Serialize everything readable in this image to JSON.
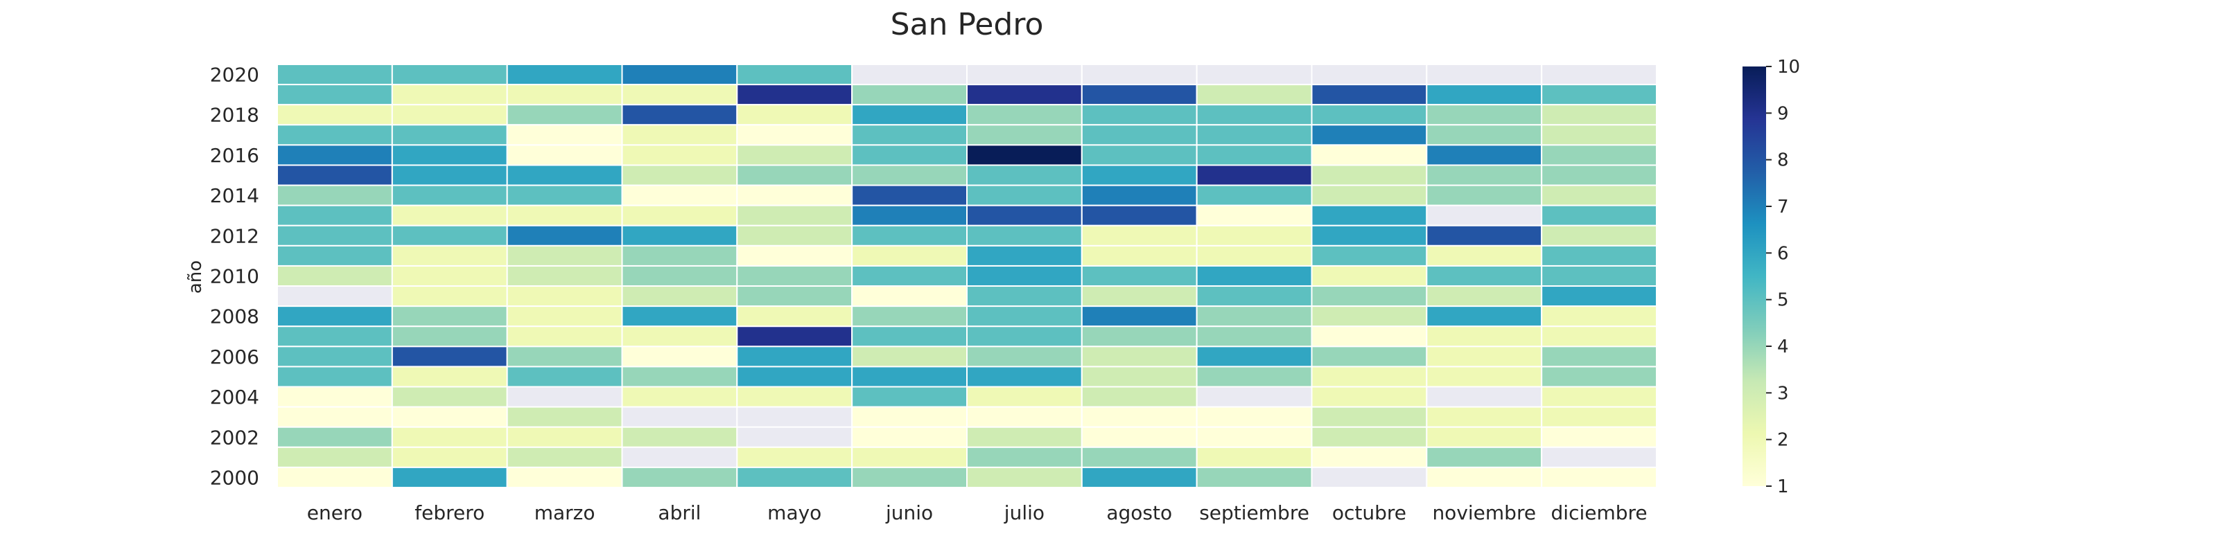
{
  "chart_data": {
    "type": "heatmap",
    "title": "San Pedro",
    "xlabel": "",
    "ylabel": "año",
    "categories": [
      "enero",
      "febrero",
      "marzo",
      "abril",
      "mayo",
      "junio",
      "julio",
      "agosto",
      "septiembre",
      "octubre",
      "noviembre",
      "diciembre"
    ],
    "years": [
      2020,
      2019,
      2018,
      2017,
      2016,
      2015,
      2014,
      2013,
      2012,
      2011,
      2010,
      2009,
      2008,
      2007,
      2006,
      2005,
      2004,
      2003,
      2002,
      2001,
      2000
    ],
    "y_tick_labels": [
      "2020",
      "2018",
      "2016",
      "2014",
      "2012",
      "2010",
      "2008",
      "2006",
      "2004",
      "2002",
      "2000"
    ],
    "values": [
      [
        5,
        5,
        6,
        7,
        5,
        null,
        null,
        null,
        null,
        null,
        null,
        null
      ],
      [
        5,
        2,
        2,
        2,
        9,
        4,
        9,
        8,
        3,
        8,
        6,
        5
      ],
      [
        2,
        2,
        4,
        8,
        2,
        6,
        4,
        5,
        5,
        5,
        4,
        3
      ],
      [
        5,
        5,
        1,
        2,
        1,
        5,
        4,
        5,
        5,
        7,
        4,
        3
      ],
      [
        7,
        6,
        1,
        2,
        3,
        5,
        10,
        5,
        5,
        1,
        7,
        4
      ],
      [
        8,
        6,
        6,
        3,
        4,
        4,
        5,
        6,
        9,
        3,
        4,
        4
      ],
      [
        4,
        5,
        5,
        1,
        1,
        8,
        5,
        7,
        5,
        3,
        4,
        3
      ],
      [
        5,
        2,
        2,
        2,
        3,
        7,
        8,
        8,
        1,
        6,
        null,
        5
      ],
      [
        5,
        5,
        7,
        6,
        3,
        5,
        5,
        2,
        2,
        6,
        8,
        3
      ],
      [
        5,
        2,
        3,
        4,
        1,
        2,
        6,
        2,
        2,
        5,
        2,
        5
      ],
      [
        3,
        2,
        3,
        4,
        4,
        5,
        6,
        5,
        6,
        2,
        5,
        5
      ],
      [
        null,
        2,
        2,
        3,
        4,
        1,
        5,
        3,
        5,
        4,
        3,
        6
      ],
      [
        6,
        4,
        2,
        6,
        2,
        4,
        5,
        7,
        4,
        3,
        6,
        2
      ],
      [
        5,
        4,
        2,
        2,
        9,
        5,
        5,
        4,
        4,
        1,
        2,
        2
      ],
      [
        5,
        8,
        4,
        1,
        6,
        3,
        4,
        3,
        6,
        4,
        2,
        4
      ],
      [
        5,
        2,
        5,
        4,
        6,
        6,
        6,
        3,
        4,
        2,
        2,
        4
      ],
      [
        1,
        3,
        null,
        2,
        2,
        5,
        2,
        3,
        null,
        2,
        null,
        2
      ],
      [
        1,
        1,
        3,
        null,
        null,
        1,
        1,
        1,
        1,
        3,
        2,
        2
      ],
      [
        4,
        2,
        2,
        3,
        null,
        1,
        3,
        1,
        1,
        3,
        2,
        1
      ],
      [
        3,
        2,
        3,
        null,
        2,
        2,
        4,
        4,
        2,
        1,
        4,
        null
      ],
      [
        1,
        6,
        1,
        4,
        5,
        4,
        3,
        6,
        4,
        null,
        1,
        1
      ]
    ],
    "missing_color": "#eaeaf2",
    "colorbar": {
      "min": 1,
      "max": 10,
      "ticks": [
        "1",
        "2",
        "3",
        "4",
        "5",
        "6",
        "7",
        "8",
        "9",
        "10"
      ],
      "colormap": "YlGnBu"
    },
    "grid": false,
    "cell_border_color": "#ffffff"
  }
}
